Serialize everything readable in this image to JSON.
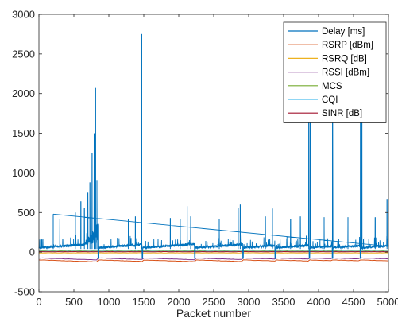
{
  "chart_data": {
    "type": "line",
    "title": "",
    "xlabel": "Packet number",
    "ylabel": "",
    "xlim": [
      0,
      5000
    ],
    "ylim": [
      -500,
      3000
    ],
    "xticks": [
      0,
      500,
      1000,
      1500,
      2000,
      2500,
      3000,
      3500,
      4000,
      4500,
      5000
    ],
    "yticks": [
      -500,
      0,
      500,
      1000,
      1500,
      2000,
      2500,
      3000
    ],
    "grid": false,
    "legend_position": "top-right",
    "series": [
      {
        "name": "Delay [ms]",
        "color": "#0072BD",
        "baseline": 40,
        "segment_breaks": [
          850,
          1480,
          2230,
          2920,
          3380,
          3870,
          4200,
          4600
        ],
        "spikes": [
          [
            205,
            480
          ],
          [
            300,
            420
          ],
          [
            520,
            500
          ],
          [
            600,
            640
          ],
          [
            650,
            560
          ],
          [
            700,
            750
          ],
          [
            730,
            880
          ],
          [
            760,
            1250
          ],
          [
            790,
            1500
          ],
          [
            810,
            2070
          ],
          [
            830,
            900
          ],
          [
            1280,
            420
          ],
          [
            1380,
            450
          ],
          [
            1470,
            2750
          ],
          [
            1880,
            430
          ],
          [
            2020,
            420
          ],
          [
            2120,
            580
          ],
          [
            2170,
            450
          ],
          [
            2580,
            420
          ],
          [
            2850,
            560
          ],
          [
            2880,
            600
          ],
          [
            3240,
            450
          ],
          [
            3340,
            550
          ],
          [
            3600,
            420
          ],
          [
            3740,
            450
          ],
          [
            3860,
            1700
          ],
          [
            3880,
            2160
          ],
          [
            4080,
            440
          ],
          [
            4200,
            1630
          ],
          [
            4220,
            1800
          ],
          [
            4420,
            440
          ],
          [
            4600,
            1680
          ],
          [
            4620,
            1730
          ],
          [
            4810,
            440
          ],
          [
            4980,
            670
          ]
        ]
      },
      {
        "name": "RSRP [dBm]",
        "color": "#D95319",
        "level": -110
      },
      {
        "name": "RSRQ [dB]",
        "color": "#EDB120",
        "level": -10
      },
      {
        "name": "RSSI [dBm]",
        "color": "#7E2F8E",
        "level": -85
      },
      {
        "name": "MCS",
        "color": "#77AC30",
        "level": 15
      },
      {
        "name": "CQI",
        "color": "#4DBEEE",
        "level": 10
      },
      {
        "name": "SINR [dB]",
        "color": "#A2142F",
        "level": 5
      }
    ]
  }
}
